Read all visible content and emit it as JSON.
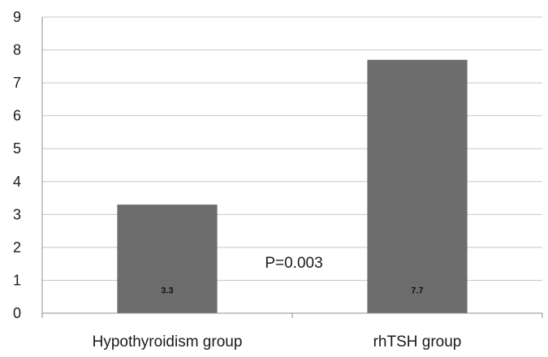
{
  "chart_data": {
    "type": "bar",
    "categories": [
      "Hypothyroidism group",
      "rhTSH group"
    ],
    "values": [
      3.3,
      7.7
    ],
    "data_labels": [
      "3.3",
      "7.7"
    ],
    "ylim": [
      0,
      9
    ],
    "yticks": [
      "0",
      "1",
      "2",
      "3",
      "4",
      "5",
      "6",
      "7",
      "8",
      "9"
    ],
    "annotation": "P=0.003",
    "title": "",
    "xlabel": "",
    "ylabel": "",
    "grid": true,
    "legend": "none",
    "bar_color": "#6d6d6d",
    "grid_color": "#c8c8c8"
  }
}
